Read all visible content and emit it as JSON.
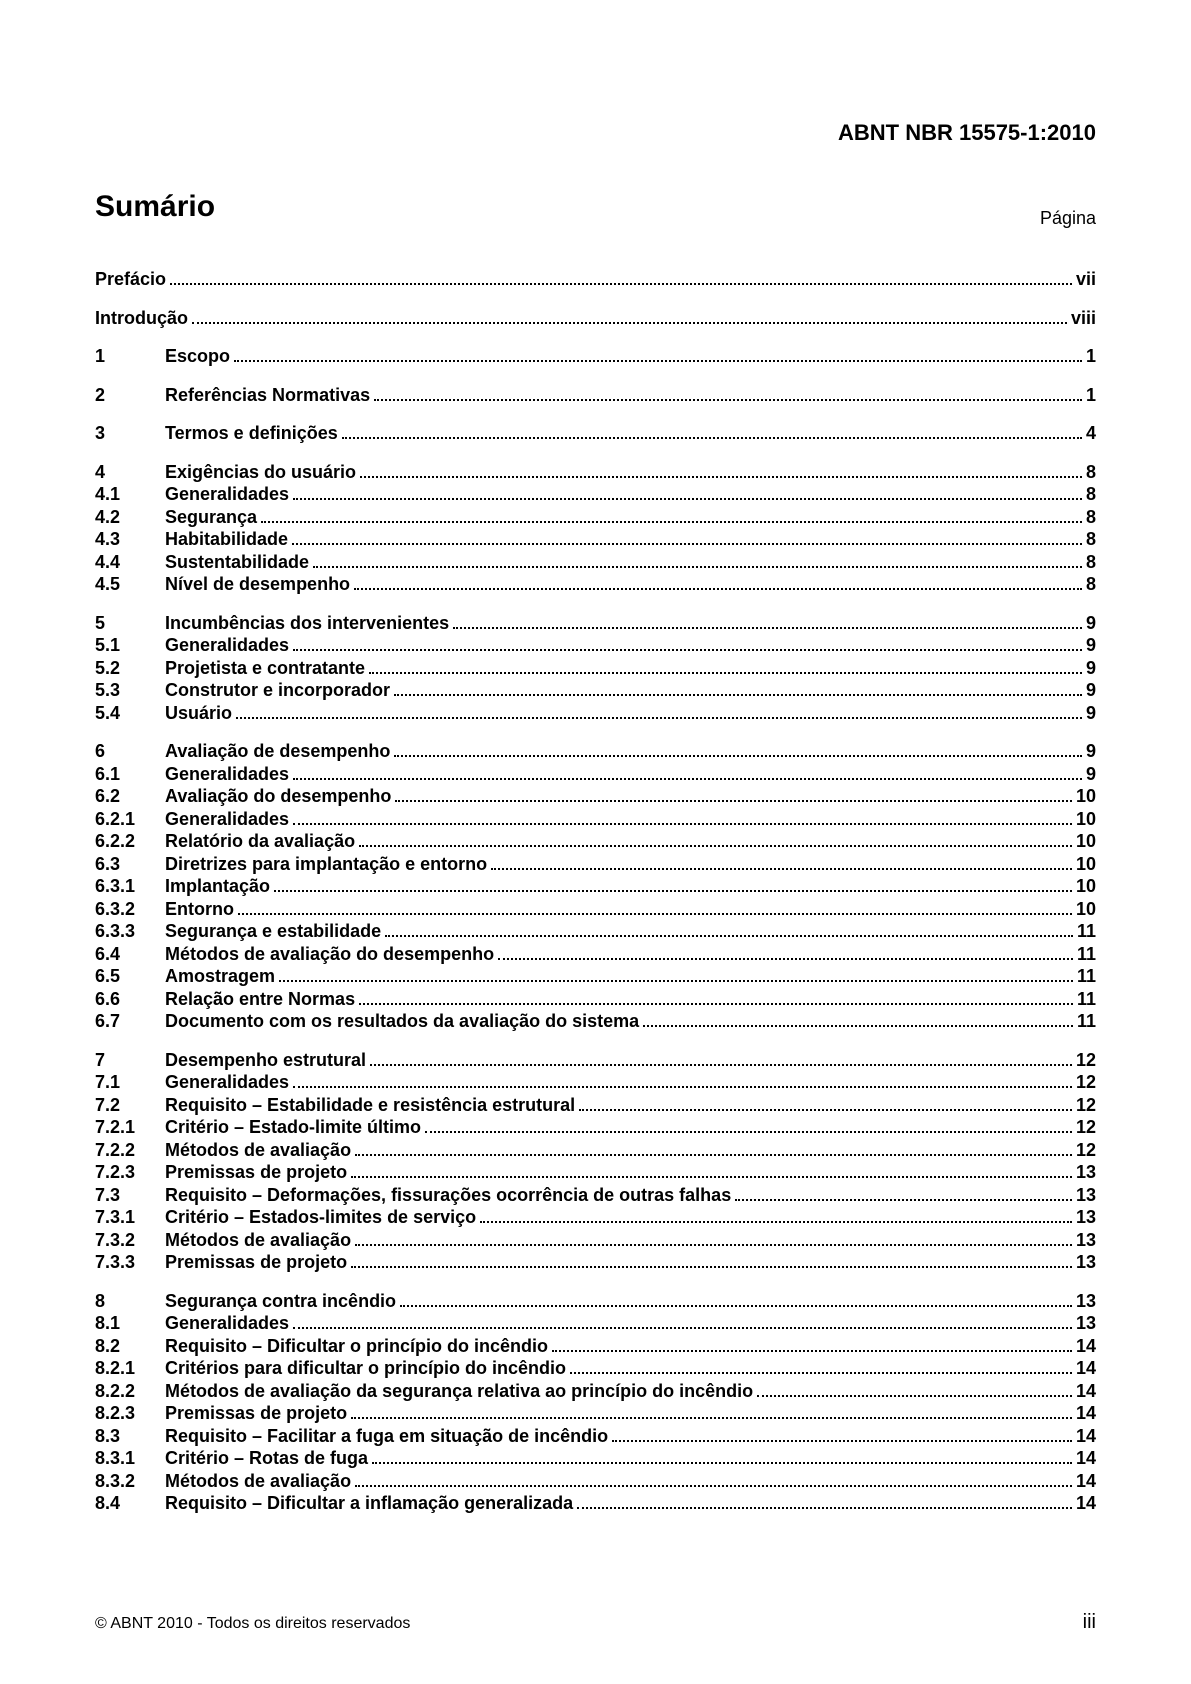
{
  "header": {
    "standard": "ABNT NBR 15575-1:2010"
  },
  "title": "Sumário",
  "page_label": "Página",
  "toc_blocks": [
    [
      {
        "num": "",
        "title": "Prefácio",
        "page": "vii"
      }
    ],
    [
      {
        "num": "",
        "title": "Introdução",
        "page": "viii"
      }
    ],
    [
      {
        "num": "1",
        "title": "Escopo",
        "page": "1"
      }
    ],
    [
      {
        "num": "2",
        "title": "Referências Normativas",
        "page": "1"
      }
    ],
    [
      {
        "num": "3",
        "title": "Termos e definições",
        "page": "4"
      }
    ],
    [
      {
        "num": "4",
        "title": "Exigências do usuário",
        "page": "8"
      },
      {
        "num": "4.1",
        "title": "Generalidades",
        "page": "8"
      },
      {
        "num": "4.2",
        "title": "Segurança",
        "page": "8"
      },
      {
        "num": "4.3",
        "title": "Habitabilidade",
        "page": "8"
      },
      {
        "num": "4.4",
        "title": "Sustentabilidade",
        "page": "8"
      },
      {
        "num": "4.5",
        "title": "Nível de desempenho",
        "page": "8"
      }
    ],
    [
      {
        "num": "5",
        "title": "Incumbências dos intervenientes",
        "page": "9"
      },
      {
        "num": "5.1",
        "title": "Generalidades",
        "page": "9"
      },
      {
        "num": "5.2",
        "title": "Projetista e contratante",
        "page": "9"
      },
      {
        "num": "5.3",
        "title": "Construtor e incorporador",
        "page": "9"
      },
      {
        "num": "5.4",
        "title": "Usuário",
        "page": "9"
      }
    ],
    [
      {
        "num": "6",
        "title": "Avaliação de desempenho",
        "page": "9"
      },
      {
        "num": "6.1",
        "title": "Generalidades",
        "page": "9"
      },
      {
        "num": "6.2",
        "title": "Avaliação do desempenho",
        "page": "10"
      },
      {
        "num": "6.2.1",
        "title": "Generalidades",
        "page": "10"
      },
      {
        "num": "6.2.2",
        "title": "Relatório da avaliação",
        "page": "10"
      },
      {
        "num": "6.3",
        "title": "Diretrizes para implantação e entorno",
        "page": "10"
      },
      {
        "num": "6.3.1",
        "title": "Implantação",
        "page": "10"
      },
      {
        "num": "6.3.2",
        "title": "Entorno",
        "page": "10"
      },
      {
        "num": "6.3.3",
        "title": "Segurança e estabilidade",
        "page": "11"
      },
      {
        "num": "6.4",
        "title": "Métodos de avaliação do desempenho",
        "page": "11"
      },
      {
        "num": "6.5",
        "title": "Amostragem",
        "page": "11"
      },
      {
        "num": "6.6",
        "title": "Relação entre Normas",
        "page": "11"
      },
      {
        "num": "6.7",
        "title": "Documento com os resultados da avaliação do sistema",
        "page": "11"
      }
    ],
    [
      {
        "num": "7",
        "title": "Desempenho estrutural",
        "page": "12"
      },
      {
        "num": "7.1",
        "title": "Generalidades",
        "page": "12"
      },
      {
        "num": "7.2",
        "title": "Requisito – Estabilidade e resistência estrutural",
        "page": "12"
      },
      {
        "num": "7.2.1",
        "title": "Critério – Estado-limite último",
        "page": "12"
      },
      {
        "num": "7.2.2",
        "title": "Métodos de avaliação",
        "page": "12"
      },
      {
        "num": "7.2.3",
        "title": "Premissas de projeto",
        "page": "13"
      },
      {
        "num": "7.3",
        "title": "Requisito – Deformações, fissurações ocorrência de outras falhas",
        "page": "13"
      },
      {
        "num": "7.3.1",
        "title": "Critério – Estados-limites de serviço",
        "page": "13"
      },
      {
        "num": "7.3.2",
        "title": "Métodos de avaliação",
        "page": "13"
      },
      {
        "num": "7.3.3",
        "title": "Premissas de projeto",
        "page": "13"
      }
    ],
    [
      {
        "num": "8",
        "title": "Segurança contra incêndio",
        "page": "13"
      },
      {
        "num": "8.1",
        "title": "Generalidades",
        "page": "13"
      },
      {
        "num": "8.2",
        "title": "Requisito – Dificultar o princípio do incêndio",
        "page": "14"
      },
      {
        "num": "8.2.1",
        "title": "Critérios para dificultar o princípio do incêndio",
        "page": "14"
      },
      {
        "num": "8.2.2",
        "title": "Métodos de avaliação da segurança relativa ao princípio do incêndio",
        "page": "14"
      },
      {
        "num": "8.2.3",
        "title": "Premissas de projeto",
        "page": "14"
      },
      {
        "num": "8.3",
        "title": "Requisito – Facilitar a fuga em situação de incêndio",
        "page": "14"
      },
      {
        "num": "8.3.1",
        "title": "Critério – Rotas de fuga",
        "page": "14"
      },
      {
        "num": "8.3.2",
        "title": "Métodos de avaliação",
        "page": "14"
      },
      {
        "num": "8.4",
        "title": "Requisito – Dificultar a inflamação generalizada",
        "page": "14"
      }
    ]
  ],
  "footer": {
    "copyright": "© ABNT 2010 - Todos os direitos reservados",
    "page_number": "iii"
  }
}
